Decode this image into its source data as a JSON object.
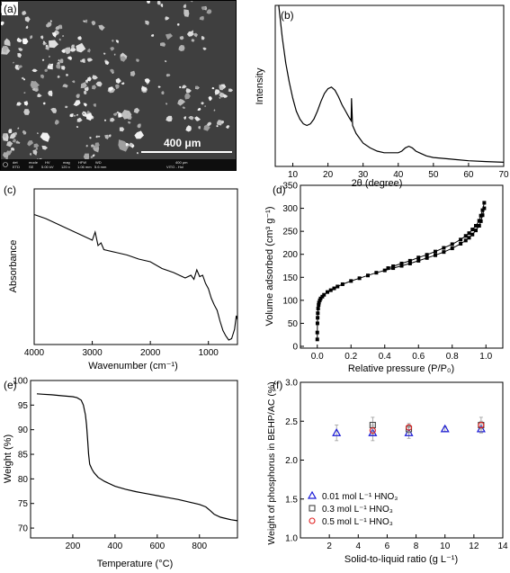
{
  "chart_data": [
    {
      "panel": "(a)",
      "type": "image",
      "scale_bar_label": "400 μm",
      "info_bar": {
        "headers": [
          "det",
          "mode",
          "HV",
          "mag",
          "HFW",
          "WD"
        ],
        "values": [
          "ETD",
          "SE",
          "5.00 kV",
          "120 x",
          "1.06 mm",
          "5.6 mm"
        ],
        "scale_text": "400 μm",
        "org": "VITO - Hol"
      }
    },
    {
      "panel": "(b)",
      "type": "line",
      "xlabel": "2θ (degree)",
      "ylabel": "Intensity",
      "xlim": [
        5,
        70
      ],
      "xticks": [
        "10",
        "20",
        "30",
        "40",
        "50",
        "60",
        "70"
      ],
      "y_ticks_shown": false,
      "x": [
        6,
        7,
        8,
        9,
        10,
        11,
        12,
        13,
        14,
        15,
        16,
        17,
        18,
        19,
        20,
        21,
        22,
        23,
        24,
        25,
        26,
        26.6,
        26.7,
        27,
        28,
        30,
        32,
        34,
        36,
        38,
        40,
        41,
        42,
        43,
        44,
        45,
        46,
        48,
        50,
        55,
        60,
        65,
        70
      ],
      "y": [
        1.0,
        0.8,
        0.64,
        0.52,
        0.42,
        0.34,
        0.29,
        0.26,
        0.25,
        0.26,
        0.29,
        0.34,
        0.4,
        0.45,
        0.48,
        0.49,
        0.47,
        0.43,
        0.38,
        0.34,
        0.3,
        0.28,
        0.42,
        0.25,
        0.2,
        0.14,
        0.11,
        0.09,
        0.08,
        0.08,
        0.08,
        0.09,
        0.11,
        0.12,
        0.11,
        0.09,
        0.08,
        0.06,
        0.05,
        0.04,
        0.03,
        0.025,
        0.02
      ]
    },
    {
      "panel": "(c)",
      "type": "line",
      "xlabel": "Wavenumber (cm⁻¹)",
      "ylabel": "Absorbance",
      "xlim": [
        4000,
        500
      ],
      "xticks": [
        "4000",
        "3000",
        "2000",
        "1000"
      ],
      "y_ticks_shown": false,
      "x": [
        4000,
        3800,
        3600,
        3400,
        3200,
        3000,
        2950,
        2900,
        2850,
        2800,
        2600,
        2400,
        2200,
        2000,
        1800,
        1600,
        1500,
        1400,
        1300,
        1250,
        1200,
        1150,
        1100,
        1050,
        1000,
        950,
        900,
        850,
        800,
        750,
        700,
        650,
        600,
        550,
        520,
        500
      ],
      "y": [
        0.95,
        0.92,
        0.88,
        0.84,
        0.8,
        0.76,
        0.82,
        0.72,
        0.74,
        0.69,
        0.67,
        0.65,
        0.62,
        0.6,
        0.55,
        0.52,
        0.5,
        0.48,
        0.5,
        0.47,
        0.54,
        0.49,
        0.5,
        0.44,
        0.4,
        0.33,
        0.28,
        0.24,
        0.16,
        0.09,
        0.05,
        0.02,
        0.03,
        0.1,
        0.2,
        0.17
      ]
    },
    {
      "panel": "(d)",
      "type": "scatter",
      "xlabel": "Relative pressure (P/P₀)",
      "ylabel": "Volume adsorbed (cm³ g⁻¹)",
      "xlim": [
        -0.1,
        1.1
      ],
      "ylim": [
        0,
        350
      ],
      "xticks": [
        "0.0",
        "0.2",
        "0.4",
        "0.6",
        "0.8",
        "1.0"
      ],
      "yticks": [
        "0",
        "50",
        "100",
        "150",
        "200",
        "250",
        "300",
        "350"
      ],
      "series": [
        {
          "x": [
            0.0,
            0.0,
            0.001,
            0.002,
            0.003,
            0.005,
            0.008,
            0.01,
            0.015,
            0.02,
            0.03,
            0.04,
            0.06,
            0.08,
            0.1,
            0.12,
            0.15,
            0.2,
            0.25,
            0.3,
            0.35,
            0.4,
            0.45,
            0.5,
            0.55,
            0.6,
            0.65,
            0.7,
            0.75,
            0.8,
            0.85,
            0.88,
            0.9,
            0.92,
            0.94,
            0.96,
            0.97,
            0.98,
            0.99
          ],
          "y": [
            15,
            30,
            50,
            62,
            72,
            82,
            90,
            95,
            100,
            104,
            108,
            112,
            118,
            122,
            126,
            130,
            135,
            142,
            148,
            154,
            160,
            165,
            170,
            175,
            180,
            186,
            192,
            198,
            205,
            213,
            223,
            230,
            236,
            243,
            252,
            262,
            272,
            285,
            300
          ]
        },
        {
          "x": [
            0.99,
            0.98,
            0.97,
            0.96,
            0.94,
            0.92,
            0.9,
            0.88,
            0.85,
            0.8,
            0.75,
            0.7,
            0.65,
            0.6,
            0.55,
            0.5,
            0.45,
            0.42
          ],
          "y": [
            312,
            296,
            284,
            273,
            262,
            254,
            246,
            240,
            232,
            222,
            214,
            206,
            199,
            193,
            186,
            180,
            174,
            170
          ]
        }
      ]
    },
    {
      "panel": "(e)",
      "type": "line",
      "xlabel": "Temperature (°C)",
      "ylabel": "Weight (%)",
      "xlim": [
        0,
        980
      ],
      "ylim": [
        68,
        100
      ],
      "xticks": [
        "200",
        "400",
        "600",
        "800"
      ],
      "yticks": [
        "70",
        "75",
        "80",
        "85",
        "90",
        "95",
        "100"
      ],
      "x": [
        30,
        60,
        100,
        150,
        200,
        220,
        240,
        250,
        260,
        265,
        270,
        275,
        280,
        290,
        300,
        320,
        350,
        400,
        450,
        500,
        550,
        600,
        650,
        700,
        750,
        800,
        830,
        850,
        870,
        900,
        950,
        980
      ],
      "y": [
        97.3,
        97.2,
        97.1,
        96.9,
        96.7,
        96.5,
        96.0,
        95.0,
        93.0,
        91.0,
        88.0,
        85.0,
        83.0,
        82.0,
        81.3,
        80.3,
        79.5,
        78.5,
        77.9,
        77.4,
        77.0,
        76.6,
        76.2,
        75.8,
        75.3,
        74.8,
        74.3,
        73.6,
        72.8,
        72.2,
        71.7,
        71.5
      ]
    },
    {
      "panel": "(f)",
      "type": "scatter",
      "xlabel": "Solid-to-liquid ratio (g L⁻¹)",
      "ylabel": "Weight of phosphorus in BEHP/AC (%)",
      "xlim": [
        0,
        14
      ],
      "ylim": [
        1.0,
        3.0
      ],
      "xticks": [
        "2",
        "4",
        "6",
        "8",
        "10",
        "12",
        "14"
      ],
      "yticks": [
        "1.0",
        "1.5",
        "2.0",
        "2.5",
        "3.0"
      ],
      "series": [
        {
          "name": "0.01 mol L⁻¹ HNO₃",
          "marker": "triangle",
          "color": "#1a1ad6",
          "x": [
            2.5,
            5,
            7.5,
            10,
            12.5
          ],
          "y": [
            2.35,
            2.35,
            2.35,
            2.4,
            2.4
          ],
          "err": [
            0.1,
            0.1,
            0.07,
            0.03,
            0.05
          ]
        },
        {
          "name": "0.3 mol L⁻¹ HNO₃",
          "marker": "square",
          "color": "#444444",
          "x": [
            5,
            7.5,
            12.5
          ],
          "y": [
            2.45,
            2.4,
            2.45
          ],
          "err": [
            0.1,
            0.05,
            0.1
          ]
        },
        {
          "name": "0.5 mol L⁻¹ HNO₃",
          "marker": "circle",
          "color": "#e02020",
          "x": [
            5,
            7.5,
            12.5
          ],
          "y": [
            2.38,
            2.42,
            2.45
          ],
          "err": [
            0.05,
            0.05,
            0.05
          ]
        }
      ]
    }
  ]
}
